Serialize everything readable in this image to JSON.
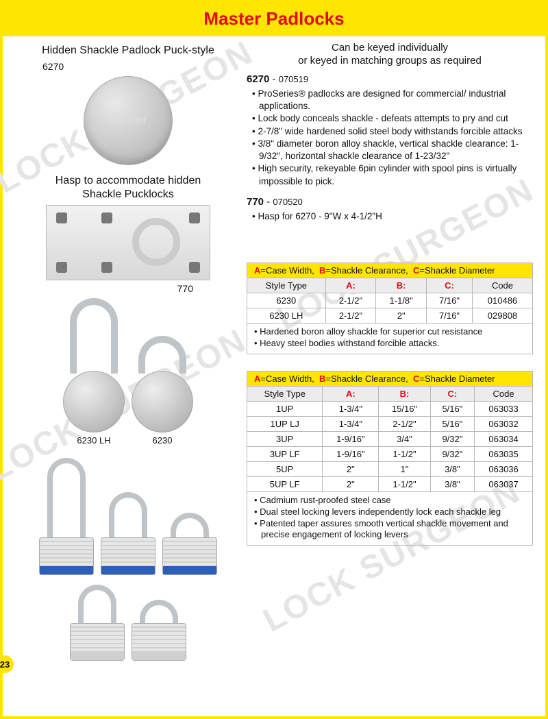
{
  "page": {
    "title": "Master Padlocks",
    "number": "23",
    "watermark": "LOCK SURGEON"
  },
  "left": {
    "puck_heading": "Hidden Shackle Padlock   Puck-style",
    "puck_sku": "6270",
    "puck_brand": "Master",
    "hasp_heading_l1": "Hasp to accommodate hidden",
    "hasp_heading_l2": "Shackle Pucklocks",
    "hasp_sku": "770",
    "round_lh_label": "6230 LH",
    "round_label": "6230"
  },
  "right": {
    "intro_l1": "Can be keyed individually",
    "intro_l2": "or keyed in matching groups as required",
    "spec1": {
      "model": "6270",
      "code": "070519",
      "bullets": [
        "ProSeries® padlocks are designed for commercial/ industrial applications.",
        "Lock body conceals shackle - defeats attempts to pry and cut",
        "2-7/8\" wide hardened solid steel body withstands forcible attacks",
        "3/8\" diameter boron alloy shackle, vertical shackle clearance: 1-9/32\", horizontal shackle clearance of 1-23/32\"",
        "High security, rekeyable 6pin cylinder with spool pins is virtually impossible to pick."
      ]
    },
    "spec2": {
      "model": "770",
      "code": "070520",
      "bullets": [
        "Hasp for 6270 - 9\"W x 4-1/2\"H"
      ]
    }
  },
  "legend": {
    "A": "A",
    "A_def": "=Case Width,",
    "B": "B",
    "B_def": "=Shackle Clearance,",
    "C": "C",
    "C_def": "=Shackle Diameter"
  },
  "table1": {
    "headers": [
      "Style Type",
      "A:",
      "B:",
      "C:",
      "Code"
    ],
    "rows": [
      [
        "6230",
        "2-1/2\"",
        "1-1/8\"",
        "7/16\"",
        "010486"
      ],
      [
        "6230 LH",
        "2-1/2\"",
        "2\"",
        "7/16\"",
        "029808"
      ]
    ],
    "notes": [
      "Hardened boron alloy shackle for superior cut resistance",
      "Heavy steel bodies withstand forcible attacks."
    ]
  },
  "table2": {
    "headers": [
      "Style Type",
      "A:",
      "B:",
      "C:",
      "Code"
    ],
    "rows": [
      [
        "1UP",
        "1-3/4\"",
        "15/16\"",
        "5/16\"",
        "063033"
      ],
      [
        "1UP LJ",
        "1-3/4\"",
        "2-1/2\"",
        "5/16\"",
        "063032"
      ],
      [
        "3UP",
        "1-9/16\"",
        "3/4\"",
        "9/32\"",
        "063034"
      ],
      [
        "3UP LF",
        "1-9/16\"",
        "1-1/2\"",
        "9/32\"",
        "063035"
      ],
      [
        "5UP",
        "2\"",
        "1\"",
        "3/8\"",
        "063036"
      ],
      [
        "5UP LF",
        "2\"",
        "1-1/2\"",
        "3/8\"",
        "063037"
      ]
    ],
    "notes": [
      "Cadmium rust-proofed steel case",
      "Dual steel locking levers independently lock each shackle leg",
      "Patented taper assures smooth vertical shackle movement and precise engagement of locking levers"
    ]
  },
  "colors": {
    "yellow": "#ffe600",
    "red": "#e20a17"
  }
}
